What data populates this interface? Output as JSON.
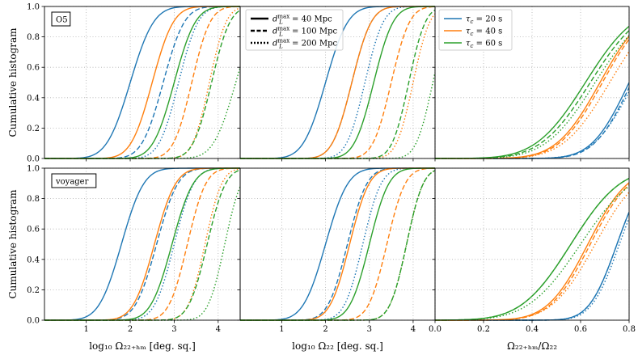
{
  "chart_data": {
    "type": "line",
    "rows": [
      {
        "tag": "O5",
        "ylabel": "Cumulative histogram"
      },
      {
        "tag": "voyager",
        "ylabel": "Cumulative histogram"
      }
    ],
    "columns": [
      {
        "xlabel": "log₁₀ Ω₂₂₊ₕₘ [deg. sq.]",
        "xlim": [
          0.05,
          4.5
        ],
        "xticks": [
          1,
          2,
          3,
          4
        ],
        "xtick_labels": [
          "1",
          "2",
          "3",
          "4"
        ]
      },
      {
        "xlabel": "log₁₀ Ω₂₂ [deg. sq.]",
        "xlim": [
          0.05,
          4.5
        ],
        "xticks": [
          1,
          2,
          3,
          4
        ],
        "xtick_labels": [
          "1",
          "2",
          "3",
          "4"
        ]
      },
      {
        "xlabel": "Ω₂₂₊ₕₘ/Ω₂₂",
        "xlim": [
          0.0,
          0.8
        ],
        "xticks": [
          0.0,
          0.2,
          0.4,
          0.6,
          0.8
        ],
        "xtick_labels": [
          "0.0",
          "0.2",
          "0.4",
          "0.6",
          "0.8"
        ]
      }
    ],
    "ylim": [
      0.0,
      1.0
    ],
    "yticks": [
      0.0,
      0.2,
      0.4,
      0.6,
      0.8,
      1.0
    ],
    "ytick_labels": [
      "0.0",
      "0.2",
      "0.4",
      "0.6",
      "0.8",
      "1.0"
    ],
    "legend_styles": [
      {
        "label": "d_L^max = 40 Mpc",
        "text": "d",
        "sub": "L",
        "sup": "max",
        "rest": " = 40 Mpc",
        "dash": "solid"
      },
      {
        "label": "d_L^max = 100 Mpc",
        "text": "d",
        "sub": "L",
        "sup": "max",
        "rest": " = 100 Mpc",
        "dash": "dashed"
      },
      {
        "label": "d_L^max = 200 Mpc",
        "text": "d",
        "sub": "L",
        "sup": "max",
        "rest": " = 200 Mpc",
        "dash": "dotted"
      }
    ],
    "legend_colors": [
      {
        "label": "τ_c = 20 s",
        "text": "τ",
        "sub": "c",
        "rest": " = 20 s",
        "color": "#1f77b4"
      },
      {
        "label": "τ_c = 40 s",
        "text": "τ",
        "sub": "c",
        "rest": " = 40 s",
        "color": "#ff7f0e"
      },
      {
        "label": "τ_c = 60 s",
        "text": "τ",
        "sub": "c",
        "rest": " = 60 s",
        "color": "#2ca02c"
      }
    ],
    "legend_styles_location": "upper-left of middle column, top row",
    "legend_colors_location": "upper-left of right column, top row",
    "panels": [
      {
        "row": 0,
        "col": 0,
        "curves": [
          {
            "tau": 20,
            "dL": 40,
            "mu": 2.0,
            "s": 0.42
          },
          {
            "tau": 20,
            "dL": 100,
            "mu": 2.75,
            "s": 0.38
          },
          {
            "tau": 20,
            "dL": 200,
            "mu": 3.1,
            "s": 0.35
          },
          {
            "tau": 40,
            "dL": 40,
            "mu": 2.5,
            "s": 0.38
          },
          {
            "tau": 40,
            "dL": 100,
            "mu": 3.4,
            "s": 0.33
          },
          {
            "tau": 40,
            "dL": 200,
            "mu": 3.8,
            "s": 0.3
          },
          {
            "tau": 60,
            "dL": 40,
            "mu": 3.0,
            "s": 0.38
          },
          {
            "tau": 60,
            "dL": 100,
            "mu": 3.85,
            "s": 0.33
          },
          {
            "tau": 60,
            "dL": 200,
            "mu": 4.4,
            "s": 0.4
          }
        ]
      },
      {
        "row": 0,
        "col": 1,
        "curves": [
          {
            "tau": 20,
            "dL": 40,
            "mu": 2.0,
            "s": 0.4
          },
          {
            "tau": 20,
            "dL": 100,
            "mu": 2.6,
            "s": 0.35
          },
          {
            "tau": 20,
            "dL": 200,
            "mu": 2.9,
            "s": 0.33
          },
          {
            "tau": 40,
            "dL": 40,
            "mu": 2.6,
            "s": 0.35
          },
          {
            "tau": 40,
            "dL": 100,
            "mu": 3.5,
            "s": 0.33
          },
          {
            "tau": 40,
            "dL": 200,
            "mu": 4.0,
            "s": 0.3
          },
          {
            "tau": 60,
            "dL": 40,
            "mu": 3.1,
            "s": 0.35
          },
          {
            "tau": 60,
            "dL": 100,
            "mu": 3.9,
            "s": 0.3
          },
          {
            "tau": 60,
            "dL": 200,
            "mu": 4.45,
            "s": 0.3
          }
        ]
      },
      {
        "row": 0,
        "col": 2,
        "curves": [
          {
            "tau": 20,
            "dL": 40,
            "mu": 0.8,
            "s": 0.12
          },
          {
            "tau": 20,
            "dL": 100,
            "mu": 0.81,
            "s": 0.12
          },
          {
            "tau": 20,
            "dL": 200,
            "mu": 0.82,
            "s": 0.13
          },
          {
            "tau": 40,
            "dL": 40,
            "mu": 0.68,
            "s": 0.14
          },
          {
            "tau": 40,
            "dL": 100,
            "mu": 0.69,
            "s": 0.14
          },
          {
            "tau": 40,
            "dL": 200,
            "mu": 0.72,
            "s": 0.15
          },
          {
            "tau": 60,
            "dL": 40,
            "mu": 0.62,
            "s": 0.16
          },
          {
            "tau": 60,
            "dL": 100,
            "mu": 0.64,
            "s": 0.16
          },
          {
            "tau": 60,
            "dL": 200,
            "mu": 0.66,
            "s": 0.16
          }
        ]
      },
      {
        "row": 1,
        "col": 0,
        "curves": [
          {
            "tau": 20,
            "dL": 40,
            "mu": 1.8,
            "s": 0.4
          },
          {
            "tau": 20,
            "dL": 100,
            "mu": 2.6,
            "s": 0.38
          },
          {
            "tau": 20,
            "dL": 200,
            "mu": 3.0,
            "s": 0.35
          },
          {
            "tau": 40,
            "dL": 40,
            "mu": 2.55,
            "s": 0.38
          },
          {
            "tau": 40,
            "dL": 100,
            "mu": 3.3,
            "s": 0.33
          },
          {
            "tau": 40,
            "dL": 200,
            "mu": 3.7,
            "s": 0.3
          },
          {
            "tau": 60,
            "dL": 40,
            "mu": 2.95,
            "s": 0.38
          },
          {
            "tau": 60,
            "dL": 100,
            "mu": 3.75,
            "s": 0.33
          },
          {
            "tau": 60,
            "dL": 200,
            "mu": 4.15,
            "s": 0.3
          }
        ]
      },
      {
        "row": 1,
        "col": 1,
        "curves": [
          {
            "tau": 20,
            "dL": 40,
            "mu": 2.0,
            "s": 0.4
          },
          {
            "tau": 20,
            "dL": 100,
            "mu": 2.5,
            "s": 0.35
          },
          {
            "tau": 20,
            "dL": 200,
            "mu": 2.85,
            "s": 0.33
          },
          {
            "tau": 40,
            "dL": 40,
            "mu": 2.55,
            "s": 0.35
          },
          {
            "tau": 40,
            "dL": 100,
            "mu": 3.4,
            "s": 0.33
          },
          {
            "tau": 40,
            "dL": 200,
            "mu": 3.85,
            "s": 0.3
          },
          {
            "tau": 60,
            "dL": 40,
            "mu": 3.0,
            "s": 0.35
          },
          {
            "tau": 60,
            "dL": 100,
            "mu": 3.85,
            "s": 0.3
          },
          {
            "tau": 60,
            "dL": 200,
            "mu": 3.85,
            "s": 0.3
          }
        ]
      },
      {
        "row": 1,
        "col": 2,
        "curves": [
          {
            "tau": 20,
            "dL": 40,
            "mu": 0.75,
            "s": 0.09
          },
          {
            "tau": 20,
            "dL": 100,
            "mu": 0.75,
            "s": 0.09
          },
          {
            "tau": 20,
            "dL": 200,
            "mu": 0.76,
            "s": 0.09
          },
          {
            "tau": 40,
            "dL": 40,
            "mu": 0.63,
            "s": 0.13
          },
          {
            "tau": 40,
            "dL": 100,
            "mu": 0.64,
            "s": 0.13
          },
          {
            "tau": 40,
            "dL": 200,
            "mu": 0.66,
            "s": 0.14
          },
          {
            "tau": 60,
            "dL": 40,
            "mu": 0.56,
            "s": 0.16
          },
          {
            "tau": 60,
            "dL": 100,
            "mu": 0.56,
            "s": 0.16
          },
          {
            "tau": 60,
            "dL": 200,
            "mu": 0.6,
            "s": 0.17
          }
        ]
      }
    ]
  }
}
